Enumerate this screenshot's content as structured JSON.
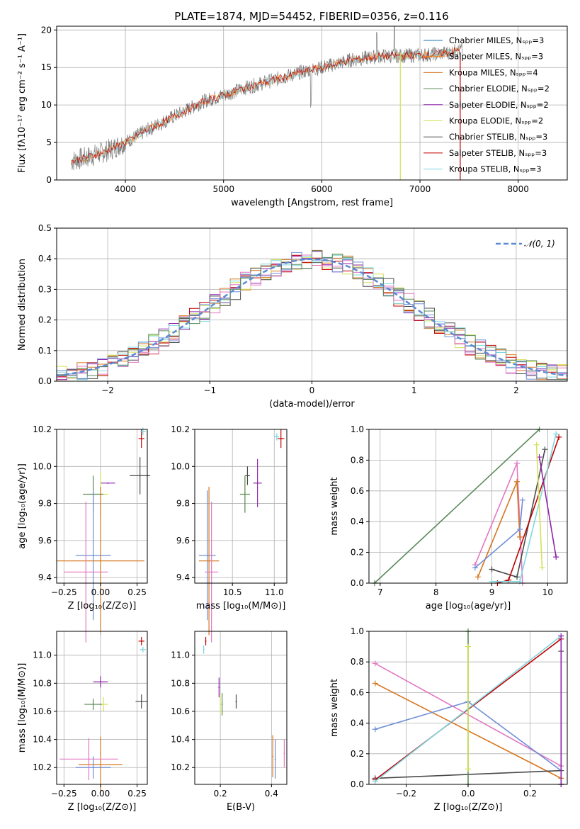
{
  "figure_title": "PLATE=1874, MJD=54452, FIBERID=0356, z=0.116",
  "colors": {
    "chabrier_miles": "#1f77b4",
    "salpeter_miles": "#ff7f0e",
    "kroupa_miles": "#d6761f",
    "chabrier_elodie": "#5a8a5a",
    "salpeter_elodie": "#8e24aa",
    "kroupa_elodie": "#d4e157",
    "chabrier_stelib": "#4a4a4a",
    "salpeter_stelib": "#c00000",
    "kroupa_stelib": "#7fd7e0",
    "pink": "#e377c2",
    "blue": "#6f8fd6",
    "normal": "#5b8bd4"
  },
  "chart_data": [
    {
      "id": "spectrum",
      "type": "line",
      "xlabel": "wavelength [Angstrom, rest frame]",
      "ylabel": "Flux [fλ10⁻¹⁷ erg cm⁻² s⁻¹ A⁻¹]",
      "xlim": [
        3300,
        8500
      ],
      "ylim": [
        0,
        20.5
      ],
      "xticks": [
        "4000",
        "5000",
        "6000",
        "7000",
        "8000"
      ],
      "yticks": [
        "0",
        "5",
        "10",
        "15",
        "20"
      ],
      "legend_position": "top-right",
      "legend": [
        "Chabrier MILES, Nₛₚₚ=3",
        "Salpeter MILES, Nₛₚₚ=3",
        "Kroupa MILES, Nₛₚₚ=4",
        "Chabrier ELODIE, Nₛₚₚ=2",
        "Salpeter ELODIE, Nₛₚₚ=2",
        "Kroupa ELODIE, Nₛₚₚ=2",
        "Chabrier STELIB, Nₛₚₚ=3",
        "Salpeter STELIB, Nₛₚₚ=3",
        "Kroupa STELIB, Nₛₚₚ=3"
      ],
      "continuum": {
        "x": [
          3450,
          3600,
          3800,
          4000,
          4200,
          4500,
          4800,
          5000,
          5200,
          5500,
          5800,
          6000,
          6300,
          6600,
          6900,
          7100,
          7300,
          7400
        ],
        "y": [
          2.5,
          3.0,
          3.8,
          5.0,
          6.5,
          8.5,
          10.5,
          11.3,
          12.2,
          13.3,
          14.4,
          15.0,
          16.0,
          16.5,
          16.6,
          16.7,
          17.0,
          17.3
        ]
      }
    },
    {
      "id": "residuals",
      "type": "line",
      "xlabel": "(data-model)/error",
      "ylabel": "Normed distribution",
      "xlim": [
        -2.5,
        2.5
      ],
      "ylim": [
        0,
        0.5
      ],
      "xticks": [
        "−2",
        "−1",
        "0",
        "1",
        "2"
      ],
      "yticks": [
        "0.0",
        "0.1",
        "0.2",
        "0.3",
        "0.4",
        "0.5"
      ],
      "legend": [
        "𝒩(0, 1)"
      ],
      "legend_position": "top-right",
      "series_style": "step histograms for each model plus dashed normal curve"
    },
    {
      "id": "age_vs_Z",
      "type": "scatter",
      "xlabel": "Z [log₁₀(Z/Z⊙)]",
      "ylabel": "age  [log₁₀(age/yr)]",
      "xlim": [
        -0.3,
        0.32
      ],
      "ylim": [
        9.37,
        10.2
      ],
      "xticks": [
        "−0.25",
        "0.00",
        "0.25"
      ],
      "yticks": [
        "9.4",
        "9.6",
        "9.8",
        "10.0",
        "10.2"
      ],
      "points": [
        {
          "x": 0.28,
          "y": 10.15,
          "xe": 0.02,
          "ye": 0.05,
          "c": "salpeter_stelib"
        },
        {
          "x": 0.29,
          "y": 10.19,
          "xe": 0.02,
          "ye": 0.02,
          "c": "kroupa_stelib"
        },
        {
          "x": 0.27,
          "y": 9.95,
          "xe": 0.07,
          "ye": 0.1,
          "c": "chabrier_stelib"
        },
        {
          "x": 0.05,
          "y": 9.91,
          "xe": 0.05,
          "ye": 0.0,
          "c": "salpeter_elodie"
        },
        {
          "x": 0.0,
          "y": 9.85,
          "xe": 0.05,
          "ye": 0.12,
          "c": "kroupa_elodie"
        },
        {
          "x": -0.05,
          "y": 9.85,
          "xe": 0.07,
          "ye": 0.1,
          "c": "chabrier_elodie"
        },
        {
          "x": -0.05,
          "y": 9.52,
          "xe": 0.12,
          "ye": 0.35,
          "c": "blue"
        },
        {
          "x": 0.0,
          "y": 9.49,
          "xe": 0.3,
          "ye": 0.4,
          "c": "kroupa_miles"
        },
        {
          "x": -0.1,
          "y": 9.43,
          "xe": 0.15,
          "ye": 0.38,
          "c": "pink"
        }
      ]
    },
    {
      "id": "age_vs_mass",
      "type": "scatter",
      "xlabel": "mass [log₁₀(M/M⊙)]",
      "ylabel": "",
      "xlim": [
        10.05,
        11.15
      ],
      "ylim": [
        9.37,
        10.2
      ],
      "xticks": [
        "10.5",
        "11.0"
      ],
      "yticks": [
        "9.4",
        "9.6",
        "9.8",
        "10.0",
        "10.2"
      ],
      "points": [
        {
          "x": 11.08,
          "y": 10.15,
          "xe": 0.04,
          "ye": 0.05,
          "c": "salpeter_stelib"
        },
        {
          "x": 11.03,
          "y": 10.16,
          "xe": 0.03,
          "ye": 0.02,
          "c": "kroupa_stelib"
        },
        {
          "x": 10.68,
          "y": 9.95,
          "xe": 0.03,
          "ye": 0.05,
          "c": "chabrier_stelib"
        },
        {
          "x": 10.8,
          "y": 9.91,
          "xe": 0.05,
          "ye": 0.13,
          "c": "salpeter_elodie"
        },
        {
          "x": 10.65,
          "y": 9.85,
          "xe": 0.06,
          "ye": 0.1,
          "c": "kroupa_elodie"
        },
        {
          "x": 10.65,
          "y": 9.85,
          "xe": 0.06,
          "ye": 0.1,
          "c": "chabrier_elodie"
        },
        {
          "x": 10.2,
          "y": 9.52,
          "xe": 0.1,
          "ye": 0.35,
          "c": "blue"
        },
        {
          "x": 10.22,
          "y": 9.49,
          "xe": 0.12,
          "ye": 0.4,
          "c": "kroupa_miles"
        },
        {
          "x": 10.25,
          "y": 9.43,
          "xe": 0.08,
          "ye": 0.38,
          "c": "pink"
        }
      ]
    },
    {
      "id": "weight_vs_age",
      "type": "line",
      "xlabel": "age  [log₁₀(age/yr)]",
      "ylabel": "mass weight",
      "xlim": [
        6.8,
        10.35
      ],
      "ylim": [
        0,
        1
      ],
      "xticks": [
        "7",
        "8",
        "9",
        "10"
      ],
      "yticks": [
        "0.0",
        "0.2",
        "0.4",
        "0.6",
        "0.8",
        "1.0"
      ],
      "series": [
        {
          "c": "chabrier_elodie",
          "x": [
            6.9,
            9.85
          ],
          "y": [
            0.0,
            1.0
          ]
        },
        {
          "c": "pink",
          "x": [
            8.7,
            9.45,
            9.55
          ],
          "y": [
            0.12,
            0.78,
            0.0
          ]
        },
        {
          "c": "kroupa_miles",
          "x": [
            8.75,
            9.45,
            9.5
          ],
          "y": [
            0.04,
            0.66,
            0.3
          ]
        },
        {
          "c": "blue",
          "x": [
            8.7,
            9.5,
            9.55
          ],
          "y": [
            0.1,
            0.35,
            0.54
          ]
        },
        {
          "c": "chabrier_stelib",
          "x": [
            9.0,
            9.45,
            9.95
          ],
          "y": [
            0.09,
            0.04,
            0.87
          ]
        },
        {
          "c": "salpeter_stelib",
          "x": [
            9.1,
            9.3,
            10.2
          ],
          "y": [
            0.0,
            0.02,
            0.95
          ]
        },
        {
          "c": "kroupa_stelib",
          "x": [
            9.0,
            9.5,
            10.15
          ],
          "y": [
            0.01,
            0.01,
            0.97
          ]
        },
        {
          "c": "salpeter_elodie",
          "x": [
            9.85,
            10.15
          ],
          "y": [
            0.82,
            0.17
          ]
        },
        {
          "c": "kroupa_elodie",
          "x": [
            9.8,
            9.9
          ],
          "y": [
            0.9,
            0.1
          ]
        }
      ]
    },
    {
      "id": "mass_vs_Z",
      "type": "scatter",
      "xlabel": "Z [log₁₀(Z/Z⊙)]",
      "ylabel": "mass [log₁₀(M/M⊙)]",
      "xlim": [
        -0.3,
        0.32
      ],
      "ylim": [
        10.08,
        11.17
      ],
      "xticks": [
        "−0.25",
        "0.00",
        "0.25"
      ],
      "yticks": [
        "10.2",
        "10.4",
        "10.6",
        "10.8",
        "11.0"
      ],
      "points": [
        {
          "x": 0.28,
          "y": 11.1,
          "xe": 0.02,
          "ye": 0.03,
          "c": "salpeter_stelib"
        },
        {
          "x": 0.29,
          "y": 11.04,
          "xe": 0.02,
          "ye": 0.02,
          "c": "kroupa_stelib"
        },
        {
          "x": 0.28,
          "y": 10.67,
          "xe": 0.04,
          "ye": 0.05,
          "c": "chabrier_stelib"
        },
        {
          "x": 0.0,
          "y": 10.81,
          "xe": 0.05,
          "ye": 0.04,
          "c": "salpeter_elodie"
        },
        {
          "x": 0.02,
          "y": 10.65,
          "xe": 0.03,
          "ye": 0.05,
          "c": "kroupa_elodie"
        },
        {
          "x": -0.05,
          "y": 10.65,
          "xe": 0.06,
          "ye": 0.04,
          "c": "chabrier_elodie"
        },
        {
          "x": -0.05,
          "y": 10.2,
          "xe": 0.12,
          "ye": 0.08,
          "c": "blue"
        },
        {
          "x": 0.0,
          "y": 10.22,
          "xe": 0.15,
          "ye": 0.2,
          "c": "kroupa_miles"
        },
        {
          "x": -0.08,
          "y": 10.26,
          "xe": 0.2,
          "ye": 0.15,
          "c": "pink"
        }
      ]
    },
    {
      "id": "mass_vs_ebv",
      "type": "scatter",
      "xlabel": "E(B-V)",
      "ylabel": "",
      "xlim": [
        0.1,
        0.46
      ],
      "ylim": [
        10.08,
        11.17
      ],
      "xticks": [
        "0.2",
        "0.4"
      ],
      "yticks": [
        "10.2",
        "10.4",
        "10.6",
        "10.8",
        "11.0"
      ],
      "points": [
        {
          "x": 0.143,
          "y": 11.1,
          "xe": 0,
          "ye": 0.03,
          "c": "salpeter_stelib"
        },
        {
          "x": 0.135,
          "y": 11.04,
          "xe": 0,
          "ye": 0.03,
          "c": "kroupa_stelib"
        },
        {
          "x": 0.262,
          "y": 10.67,
          "xe": 0,
          "ye": 0.05,
          "c": "chabrier_stelib"
        },
        {
          "x": 0.195,
          "y": 10.77,
          "xe": 0,
          "ye": 0.07,
          "c": "salpeter_elodie"
        },
        {
          "x": 0.2,
          "y": 10.65,
          "xe": 0,
          "ye": 0.07,
          "c": "kroupa_elodie"
        },
        {
          "x": 0.207,
          "y": 10.65,
          "xe": 0,
          "ye": 0.08,
          "c": "chabrier_elodie"
        },
        {
          "x": 0.415,
          "y": 10.26,
          "xe": 0,
          "ye": 0.14,
          "c": "blue"
        },
        {
          "x": 0.405,
          "y": 10.28,
          "xe": 0,
          "ye": 0.15,
          "c": "kroupa_miles"
        },
        {
          "x": 0.45,
          "y": 10.3,
          "xe": 0,
          "ye": 0.1,
          "c": "pink"
        }
      ]
    },
    {
      "id": "weight_vs_Z",
      "type": "line",
      "xlabel": "Z [log₁₀(Z/Z⊙)]",
      "ylabel": "mass weight",
      "xlim": [
        -0.32,
        0.32
      ],
      "ylim": [
        0,
        1
      ],
      "xticks": [
        "−0.2",
        "0.0",
        "0.2"
      ],
      "yticks": [
        "0.0",
        "0.2",
        "0.4",
        "0.6",
        "0.8",
        "1.0"
      ],
      "series": [
        {
          "c": "pink",
          "x": [
            -0.3,
            0.3
          ],
          "y": [
            0.79,
            0.12
          ]
        },
        {
          "c": "kroupa_miles",
          "x": [
            -0.3,
            0.3
          ],
          "y": [
            0.66,
            0.04
          ]
        },
        {
          "c": "blue",
          "x": [
            -0.3,
            0.0,
            0.3
          ],
          "y": [
            0.36,
            0.54,
            0.09
          ]
        },
        {
          "c": "chabrier_stelib",
          "x": [
            -0.3,
            0.3
          ],
          "y": [
            0.04,
            0.09
          ]
        },
        {
          "c": "salpeter_stelib",
          "x": [
            -0.3,
            0.3
          ],
          "y": [
            0.03,
            0.95
          ]
        },
        {
          "c": "kroupa_stelib",
          "x": [
            -0.3,
            0.3
          ],
          "y": [
            0.02,
            0.97
          ]
        },
        {
          "c": "chabrier_elodie",
          "x": [
            0.0,
            0.0
          ],
          "y": [
            0.0,
            1.0
          ]
        },
        {
          "c": "kroupa_elodie",
          "x": [
            0.0,
            0.0
          ],
          "y": [
            0.1,
            0.9
          ]
        },
        {
          "c": "chabrier_stelib",
          "x": [
            0.3,
            0.3
          ],
          "y": [
            0.0,
            0.87
          ]
        },
        {
          "c": "salpeter_elodie",
          "x": [
            0.3,
            0.3
          ],
          "y": [
            0.0,
            0.97
          ]
        }
      ]
    }
  ]
}
